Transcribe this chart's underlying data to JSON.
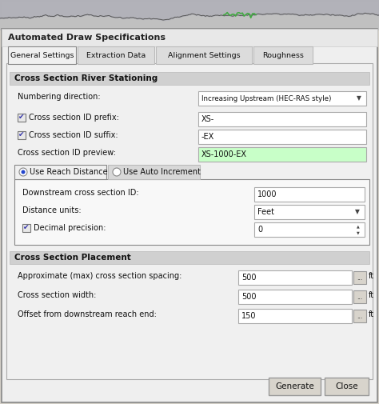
{
  "title": "Automated Draw Specifications",
  "bg_outer": "#d4d0c8",
  "bg_dialog": "#f0f0f0",
  "bg_section_header": "#d0d0d0",
  "bg_subtab_box": "#f5f5f5",
  "white": "#ffffff",
  "green_field": "#c8ffc8",
  "tab_selected": "#f0f0f0",
  "tab_unselected": "#dcdcdc",
  "tabs": [
    "General Settings",
    "Extraction Data",
    "Alignment Settings",
    "Roughness"
  ],
  "border_color": "#aaaaaa",
  "text_color": "#111111",
  "button_bg": "#d4d0c8"
}
